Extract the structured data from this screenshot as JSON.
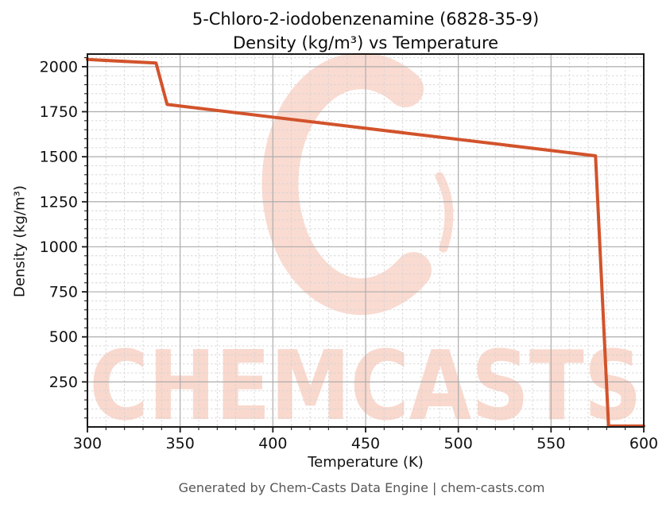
{
  "title_line1": "5-Chloro-2-iodobenzenamine (6828-35-9)",
  "title_line2": "Density (kg/m³) vs Temperature",
  "footer": "Generated by Chem-Casts Data Engine | chem-casts.com",
  "watermark": {
    "text": "CHEMCASTS",
    "text_color": "#f9d8cd",
    "logo_color": "#fadbd1"
  },
  "colors": {
    "line": "#d2532b",
    "grid_major": "#adadad",
    "grid_minor": "#d4d4d4",
    "spine": "#1a1a1a",
    "tick": "#1a1a1a",
    "tick_label": "#111111"
  },
  "chart_data": {
    "type": "line",
    "title": "5-Chloro-2-iodobenzenamine (6828-35-9) Density (kg/m³) vs Temperature",
    "xlabel": "Temperature (K)",
    "ylabel": "Density (kg/m³)",
    "series": [
      {
        "name": "Density",
        "x": [
          300,
          337,
          343,
          574,
          581,
          600
        ],
        "y": [
          2040,
          2020,
          1790,
          1505,
          5,
          5
        ]
      }
    ],
    "xlim": [
      300,
      600
    ],
    "ylim": [
      0,
      2070
    ],
    "x_major_ticks": [
      300,
      350,
      400,
      450,
      500,
      550,
      600
    ],
    "y_major_ticks": [
      250,
      500,
      750,
      1000,
      1250,
      1500,
      1750,
      2000
    ],
    "x_minor_step": 10,
    "y_minor_step": 50,
    "grid": "major solid + minor dashed",
    "legend": "none",
    "annotations": {
      "melting_drop_K": 337,
      "boiling_drop_K": 575
    }
  }
}
